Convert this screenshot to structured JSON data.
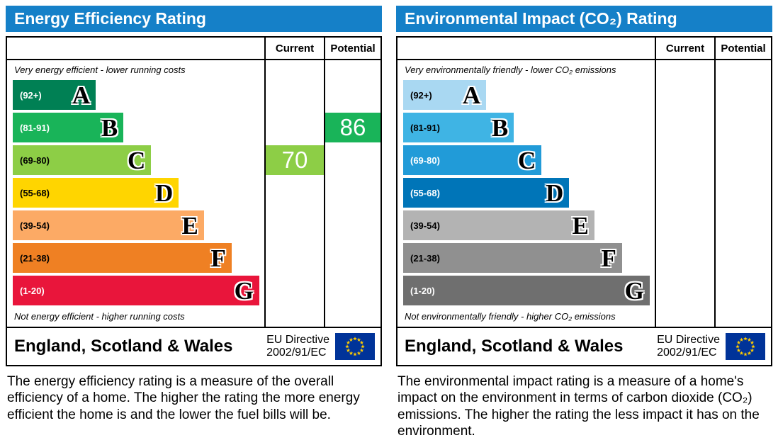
{
  "accent_color": "#1580c8",
  "flag_colors": {
    "field": "#003399",
    "stars": "#ffcc00"
  },
  "chart_data": [
    {
      "type": "bar",
      "title": "Energy Efficiency Rating",
      "columns": {
        "current": "Current",
        "potential": "Potential"
      },
      "top_note": "Very energy efficient - lower running costs",
      "bottom_note": "Not energy efficient - higher running costs",
      "bands": [
        {
          "letter": "A",
          "range": "(92+)",
          "color": "#008054",
          "range_text_color": "#ffffff",
          "width_pct": 33
        },
        {
          "letter": "B",
          "range": "(81-91)",
          "color": "#19b459",
          "range_text_color": "#ffffff",
          "width_pct": 44
        },
        {
          "letter": "C",
          "range": "(69-80)",
          "color": "#8dce46",
          "range_text_color": "#000000",
          "width_pct": 55
        },
        {
          "letter": "D",
          "range": "(55-68)",
          "color": "#ffd500",
          "range_text_color": "#000000",
          "width_pct": 66
        },
        {
          "letter": "E",
          "range": "(39-54)",
          "color": "#fcaa65",
          "range_text_color": "#000000",
          "width_pct": 76
        },
        {
          "letter": "F",
          "range": "(21-38)",
          "color": "#ef8023",
          "range_text_color": "#000000",
          "width_pct": 87
        },
        {
          "letter": "G",
          "range": "(1-20)",
          "color": "#e9153b",
          "range_text_color": "#ffffff",
          "width_pct": 98
        }
      ],
      "current": {
        "value": "70",
        "band": "C",
        "color": "#8dce46"
      },
      "potential": {
        "value": "86",
        "band": "B",
        "color": "#19b459"
      },
      "footer": {
        "region": "England, Scotland & Wales",
        "directive_line1": "EU Directive",
        "directive_line2": "2002/91/EC"
      },
      "description": "The energy efficiency rating is a measure of the overall efficiency of a home. The higher the rating the more energy efficient the home is and the lower the fuel bills will be."
    },
    {
      "type": "bar",
      "title": "Environmental Impact (CO₂) Rating",
      "columns": {
        "current": "Current",
        "potential": "Potential"
      },
      "top_note": "Very environmentally friendly - lower CO₂ emissions",
      "bottom_note": "Not environmentally friendly - higher CO₂ emissions",
      "bands": [
        {
          "letter": "A",
          "range": "(92+)",
          "color": "#a9d8f2",
          "range_text_color": "#000000",
          "width_pct": 33
        },
        {
          "letter": "B",
          "range": "(81-91)",
          "color": "#3fb4e4",
          "range_text_color": "#000000",
          "width_pct": 44
        },
        {
          "letter": "C",
          "range": "(69-80)",
          "color": "#219bd8",
          "range_text_color": "#ffffff",
          "width_pct": 55
        },
        {
          "letter": "D",
          "range": "(55-68)",
          "color": "#0075b8",
          "range_text_color": "#ffffff",
          "width_pct": 66
        },
        {
          "letter": "E",
          "range": "(39-54)",
          "color": "#b3b3b3",
          "range_text_color": "#000000",
          "width_pct": 76
        },
        {
          "letter": "F",
          "range": "(21-38)",
          "color": "#909090",
          "range_text_color": "#000000",
          "width_pct": 87
        },
        {
          "letter": "G",
          "range": "(1-20)",
          "color": "#6f6f6f",
          "range_text_color": "#ffffff",
          "width_pct": 98
        }
      ],
      "current": null,
      "potential": null,
      "footer": {
        "region": "England, Scotland & Wales",
        "directive_line1": "EU Directive",
        "directive_line2": "2002/91/EC"
      },
      "description": "The environmental impact rating is a measure of a home's impact on the environment in terms of carbon dioxide (CO₂) emissions. The higher the rating the less impact it has on the environment."
    }
  ]
}
